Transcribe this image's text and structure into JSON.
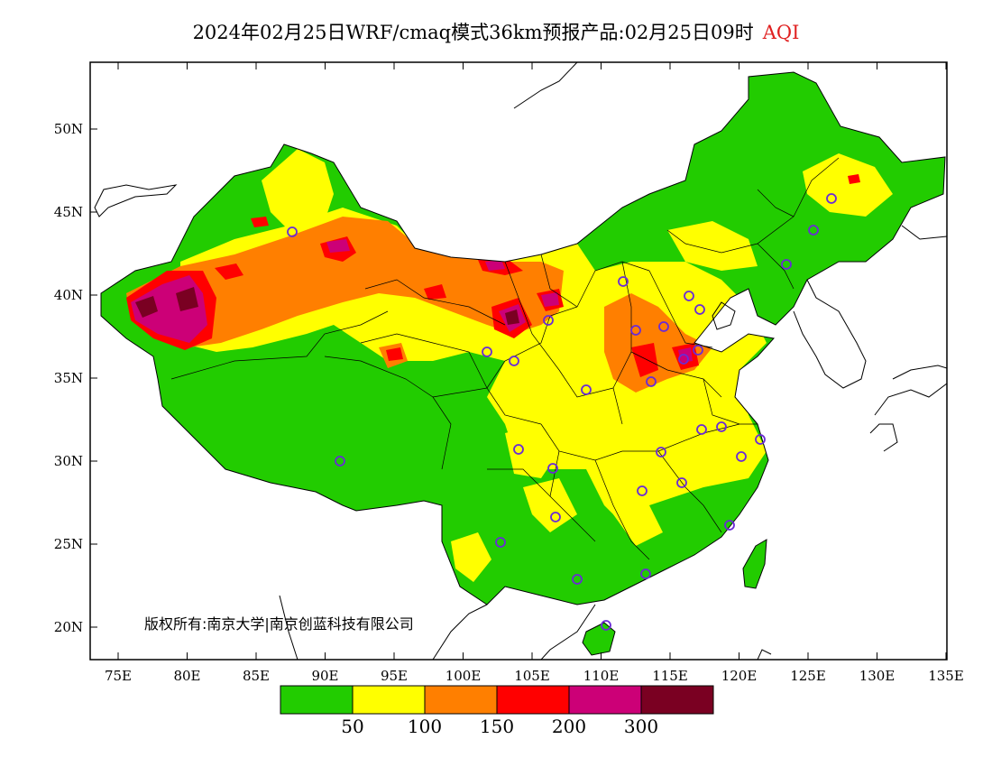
{
  "title": {
    "text": "2024年02月25日WRF/cmaq模式36km预报产品:02月25日09时",
    "variable": "AQI"
  },
  "copyright": "版权所有:南京大学|南京创蓝科技有限公司",
  "axes": {
    "lat_labels": [
      "50N",
      "45N",
      "40N",
      "35N",
      "30N",
      "25N",
      "20N"
    ],
    "lon_labels": [
      "75E",
      "80E",
      "85E",
      "90E",
      "95E",
      "100E",
      "105E",
      "110E",
      "115E",
      "120E",
      "125E",
      "130E",
      "135E"
    ]
  },
  "colorbar": {
    "colors": [
      "#22cc00",
      "#ffff00",
      "#ff7f00",
      "#ff0000",
      "#cc0077",
      "#7a0022"
    ],
    "labels": [
      "50",
      "100",
      "150",
      "200",
      "300"
    ]
  },
  "stations_icon": "circle-marker-icon"
}
